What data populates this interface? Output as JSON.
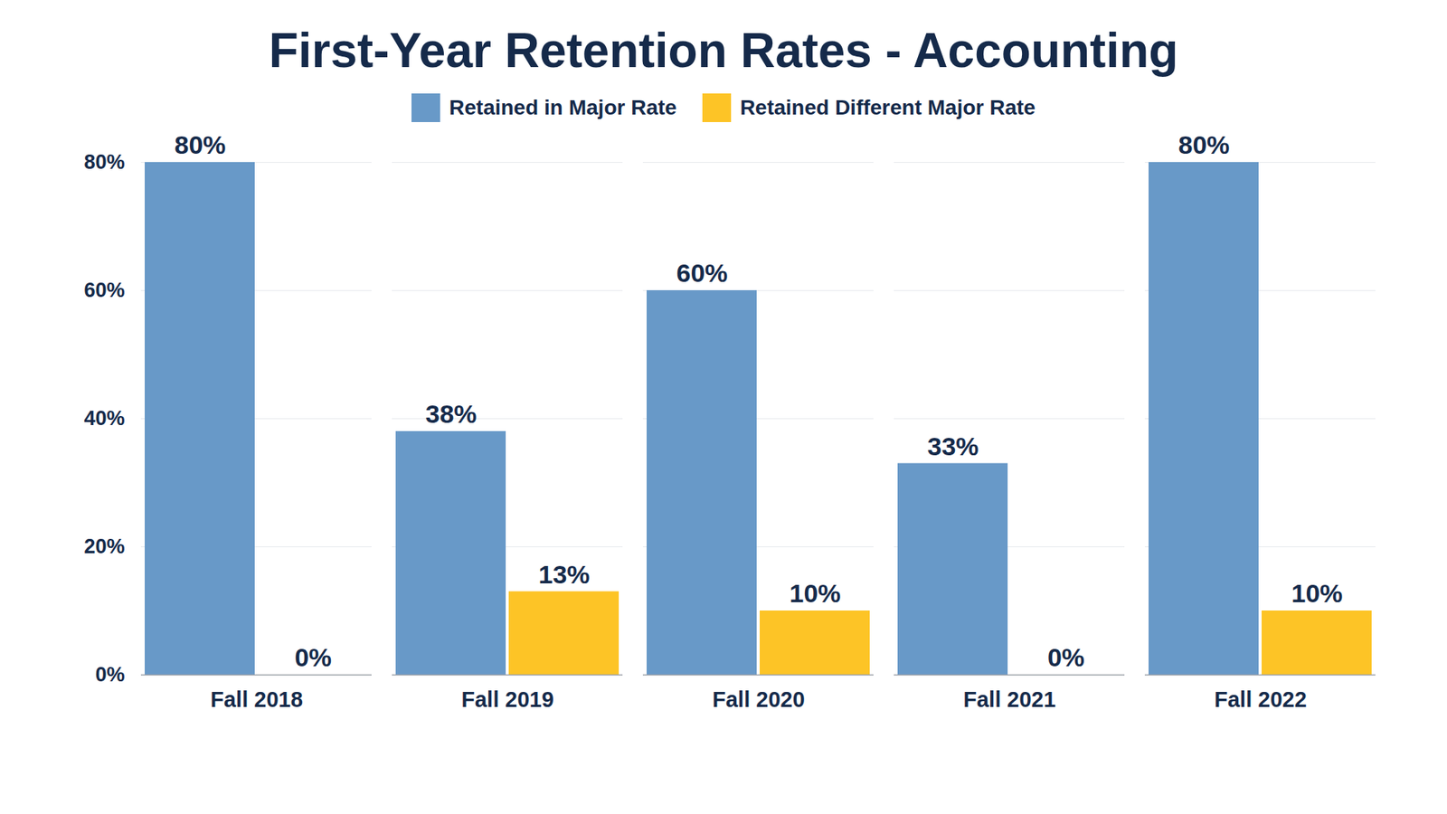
{
  "chart_data": {
    "type": "bar",
    "title": "First-Year Retention Rates - Accounting",
    "categories": [
      "Fall 2018",
      "Fall 2019",
      "Fall 2020",
      "Fall 2021",
      "Fall 2022"
    ],
    "series": [
      {
        "name": "Retained in Major Rate",
        "color": "#6899c8",
        "values": [
          80,
          38,
          60,
          33,
          80
        ],
        "value_labels": [
          "80%",
          "38%",
          "60%",
          "33%",
          "80%"
        ]
      },
      {
        "name": "Retained Different Major Rate",
        "color": "#fdc426",
        "values": [
          0,
          13,
          10,
          0,
          10
        ],
        "value_labels": [
          "0%",
          "13%",
          "10%",
          "0%",
          "10%"
        ]
      }
    ],
    "ylim": [
      0,
      80
    ],
    "yticks": [
      {
        "value": 0,
        "label": "0%"
      },
      {
        "value": 20,
        "label": "20%"
      },
      {
        "value": 40,
        "label": "40%"
      },
      {
        "value": 60,
        "label": "60%"
      },
      {
        "value": 80,
        "label": "80%"
      }
    ],
    "grid": true,
    "legend": "top",
    "data_labels": true
  }
}
